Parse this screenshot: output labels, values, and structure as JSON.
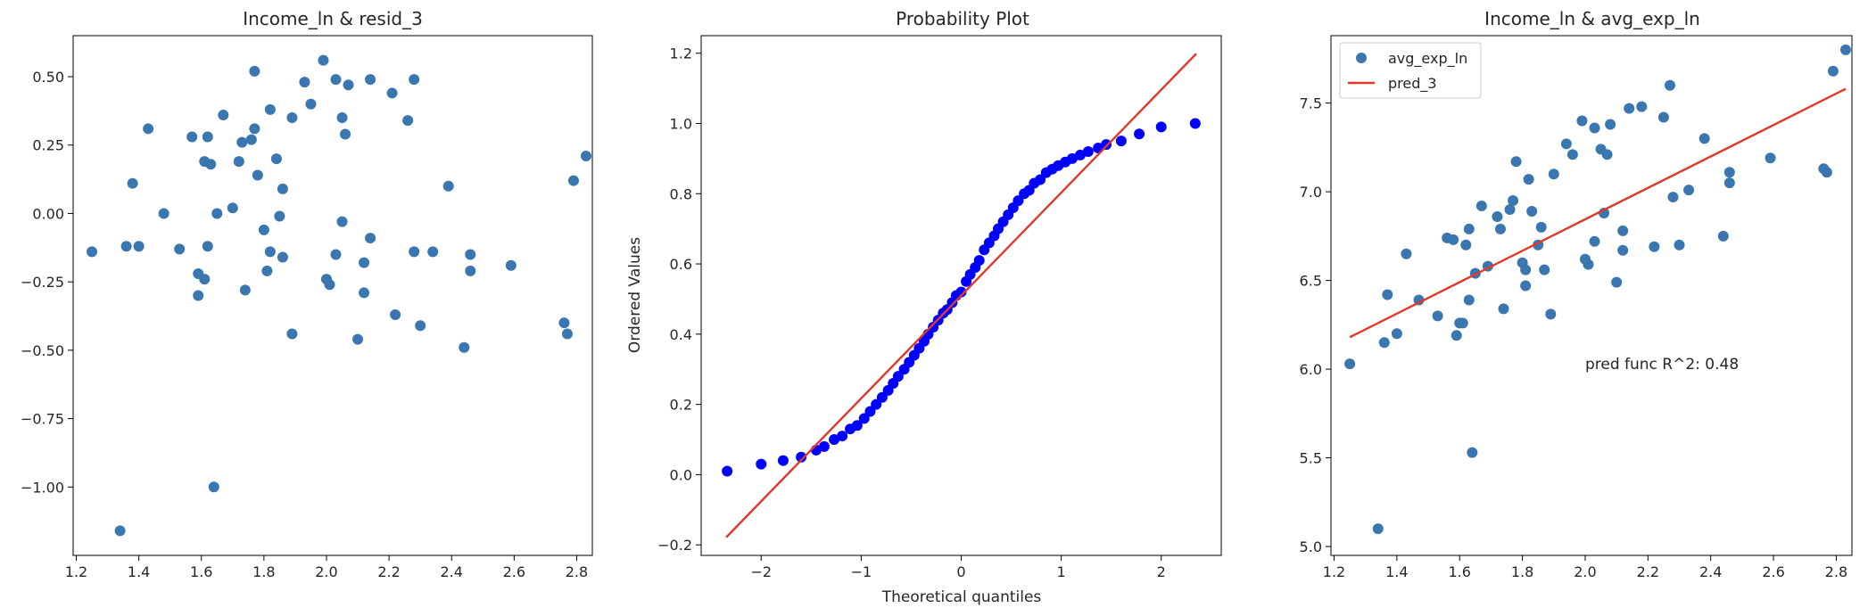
{
  "chart_data": [
    {
      "type": "scatter",
      "title": "Income_ln & resid_3",
      "xlabel": "",
      "ylabel": "",
      "xlim": [
        1.19,
        2.85
      ],
      "ylim": [
        -1.25,
        0.65
      ],
      "xticks": [
        1.2,
        1.4,
        1.6,
        1.8,
        2.0,
        2.2,
        2.4,
        2.6,
        2.8
      ],
      "xtick_labels": [
        "1.2",
        "1.4",
        "1.6",
        "1.8",
        "2.0",
        "2.2",
        "2.4",
        "2.6",
        "2.8"
      ],
      "yticks": [
        -1.0,
        -0.75,
        -0.5,
        -0.25,
        0.0,
        0.25,
        0.5
      ],
      "ytick_labels": [
        "−1.00",
        "−0.75",
        "−0.50",
        "−0.25",
        "0.00",
        "0.25",
        "0.50"
      ],
      "grid": false,
      "marker_color": "#3a76af",
      "points": [
        [
          1.25,
          -0.14
        ],
        [
          1.34,
          -1.16
        ],
        [
          1.36,
          -0.12
        ],
        [
          1.38,
          0.11
        ],
        [
          1.4,
          -0.12
        ],
        [
          1.43,
          0.31
        ],
        [
          1.48,
          0.0
        ],
        [
          1.53,
          -0.13
        ],
        [
          1.57,
          0.28
        ],
        [
          1.59,
          -0.22
        ],
        [
          1.59,
          -0.3
        ],
        [
          1.61,
          0.19
        ],
        [
          1.61,
          -0.24
        ],
        [
          1.62,
          -0.12
        ],
        [
          1.62,
          0.28
        ],
        [
          1.63,
          0.18
        ],
        [
          1.64,
          -1.0
        ],
        [
          1.65,
          0.0
        ],
        [
          1.67,
          0.36
        ],
        [
          1.7,
          0.02
        ],
        [
          1.72,
          0.19
        ],
        [
          1.73,
          0.26
        ],
        [
          1.74,
          -0.28
        ],
        [
          1.76,
          0.27
        ],
        [
          1.77,
          0.31
        ],
        [
          1.78,
          0.14
        ],
        [
          1.77,
          0.52
        ],
        [
          1.8,
          -0.06
        ],
        [
          1.81,
          -0.21
        ],
        [
          1.82,
          0.38
        ],
        [
          1.82,
          -0.14
        ],
        [
          1.84,
          0.2
        ],
        [
          1.85,
          -0.01
        ],
        [
          1.86,
          0.09
        ],
        [
          1.86,
          -0.16
        ],
        [
          1.89,
          -0.44
        ],
        [
          1.89,
          0.35
        ],
        [
          1.93,
          0.48
        ],
        [
          1.95,
          0.4
        ],
        [
          1.99,
          0.56
        ],
        [
          2.0,
          -0.24
        ],
        [
          2.01,
          -0.26
        ],
        [
          2.03,
          0.49
        ],
        [
          2.03,
          -0.15
        ],
        [
          2.05,
          0.35
        ],
        [
          2.05,
          -0.03
        ],
        [
          2.06,
          0.29
        ],
        [
          2.07,
          0.47
        ],
        [
          2.1,
          -0.46
        ],
        [
          2.12,
          -0.18
        ],
        [
          2.12,
          -0.29
        ],
        [
          2.14,
          -0.09
        ],
        [
          2.14,
          0.49
        ],
        [
          2.21,
          0.44
        ],
        [
          2.22,
          -0.37
        ],
        [
          2.26,
          0.34
        ],
        [
          2.28,
          0.49
        ],
        [
          2.28,
          -0.14
        ],
        [
          2.3,
          -0.41
        ],
        [
          2.34,
          -0.14
        ],
        [
          2.39,
          0.1
        ],
        [
          2.44,
          -0.49
        ],
        [
          2.46,
          -0.21
        ],
        [
          2.46,
          -0.15
        ],
        [
          2.59,
          -0.19
        ],
        [
          2.76,
          -0.4
        ],
        [
          2.77,
          -0.44
        ],
        [
          2.79,
          0.12
        ],
        [
          2.83,
          0.21
        ]
      ]
    },
    {
      "type": "scatter",
      "title": "Probability Plot",
      "xlabel": "Theoretical quantiles",
      "ylabel": "Ordered Values",
      "xlim": [
        -2.6,
        2.6
      ],
      "ylim": [
        -0.23,
        1.25
      ],
      "xticks": [
        -2,
        -1,
        0,
        1,
        2
      ],
      "xtick_labels": [
        "−2",
        "−1",
        "0",
        "1",
        "2"
      ],
      "yticks": [
        -0.2,
        0.0,
        0.2,
        0.4,
        0.6,
        0.8,
        1.0,
        1.2
      ],
      "ytick_labels": [
        "−0.2",
        "0.0",
        "0.2",
        "0.4",
        "0.6",
        "0.8",
        "1.0",
        "1.2"
      ],
      "grid": false,
      "marker_color": "#0000ff",
      "line_color": "#e0392b",
      "fit_line": {
        "slope": 0.293,
        "intercept": 0.51,
        "x_range": [
          -2.35,
          2.35
        ]
      },
      "points": [
        [
          -2.34,
          0.01
        ],
        [
          -2.0,
          0.03
        ],
        [
          -1.78,
          0.04
        ],
        [
          -1.6,
          0.05
        ],
        [
          -1.45,
          0.07
        ],
        [
          -1.37,
          0.08
        ],
        [
          -1.27,
          0.1
        ],
        [
          -1.19,
          0.11
        ],
        [
          -1.11,
          0.13
        ],
        [
          -1.04,
          0.14
        ],
        [
          -0.97,
          0.16
        ],
        [
          -0.91,
          0.18
        ],
        [
          -0.85,
          0.2
        ],
        [
          -0.79,
          0.22
        ],
        [
          -0.73,
          0.24
        ],
        [
          -0.68,
          0.26
        ],
        [
          -0.63,
          0.28
        ],
        [
          -0.57,
          0.3
        ],
        [
          -0.52,
          0.32
        ],
        [
          -0.47,
          0.34
        ],
        [
          -0.42,
          0.36
        ],
        [
          -0.37,
          0.38
        ],
        [
          -0.33,
          0.4
        ],
        [
          -0.28,
          0.42
        ],
        [
          -0.23,
          0.44
        ],
        [
          -0.18,
          0.46
        ],
        [
          -0.14,
          0.47
        ],
        [
          -0.09,
          0.49
        ],
        [
          -0.05,
          0.51
        ],
        [
          0.0,
          0.52
        ],
        [
          0.05,
          0.55
        ],
        [
          0.09,
          0.57
        ],
        [
          0.14,
          0.59
        ],
        [
          0.18,
          0.61
        ],
        [
          0.23,
          0.64
        ],
        [
          0.28,
          0.66
        ],
        [
          0.33,
          0.68
        ],
        [
          0.37,
          0.7
        ],
        [
          0.42,
          0.72
        ],
        [
          0.47,
          0.74
        ],
        [
          0.52,
          0.76
        ],
        [
          0.57,
          0.78
        ],
        [
          0.63,
          0.8
        ],
        [
          0.68,
          0.81
        ],
        [
          0.73,
          0.83
        ],
        [
          0.79,
          0.84
        ],
        [
          0.85,
          0.86
        ],
        [
          0.91,
          0.87
        ],
        [
          0.97,
          0.88
        ],
        [
          1.04,
          0.89
        ],
        [
          1.11,
          0.9
        ],
        [
          1.19,
          0.91
        ],
        [
          1.27,
          0.92
        ],
        [
          1.37,
          0.93
        ],
        [
          1.45,
          0.94
        ],
        [
          1.6,
          0.95
        ],
        [
          1.78,
          0.97
        ],
        [
          2.0,
          0.99
        ],
        [
          2.34,
          1.0
        ]
      ]
    },
    {
      "type": "scatter",
      "title": "Income_ln & avg_exp_ln",
      "xlabel": "",
      "ylabel": "",
      "xlim": [
        1.19,
        2.85
      ],
      "ylim": [
        4.95,
        7.88
      ],
      "xticks": [
        1.2,
        1.4,
        1.6,
        1.8,
        2.0,
        2.2,
        2.4,
        2.6,
        2.8
      ],
      "xtick_labels": [
        "1.2",
        "1.4",
        "1.6",
        "1.8",
        "2.0",
        "2.2",
        "2.4",
        "2.6",
        "2.8"
      ],
      "yticks": [
        5.0,
        5.5,
        6.0,
        6.5,
        7.0,
        7.5
      ],
      "ytick_labels": [
        "5.0",
        "5.5",
        "6.0",
        "6.5",
        "7.0",
        "7.5"
      ],
      "grid": false,
      "marker_color": "#3a76af",
      "line_color": "#e0392b",
      "legend": {
        "placement": "top-left",
        "entries": [
          "avg_exp_ln",
          "pred_3"
        ]
      },
      "annotation": {
        "text": "pred func R^2: 0.48",
        "x": 2.0,
        "y": 6.03
      },
      "fit_line": {
        "label": "pred_3",
        "x": [
          1.25,
          2.83
        ],
        "y": [
          6.18,
          7.58
        ]
      },
      "points": [
        [
          1.25,
          6.03
        ],
        [
          1.34,
          5.1
        ],
        [
          1.36,
          6.15
        ],
        [
          1.37,
          6.42
        ],
        [
          1.4,
          6.2
        ],
        [
          1.43,
          6.65
        ],
        [
          1.47,
          6.39
        ],
        [
          1.53,
          6.3
        ],
        [
          1.56,
          6.74
        ],
        [
          1.58,
          6.73
        ],
        [
          1.59,
          6.19
        ],
        [
          1.6,
          6.26
        ],
        [
          1.61,
          6.26
        ],
        [
          1.62,
          6.7
        ],
        [
          1.63,
          6.79
        ],
        [
          1.63,
          6.39
        ],
        [
          1.64,
          5.53
        ],
        [
          1.65,
          6.54
        ],
        [
          1.67,
          6.92
        ],
        [
          1.69,
          6.58
        ],
        [
          1.72,
          6.86
        ],
        [
          1.73,
          6.79
        ],
        [
          1.74,
          6.34
        ],
        [
          1.76,
          6.9
        ],
        [
          1.77,
          6.95
        ],
        [
          1.78,
          7.17
        ],
        [
          1.8,
          6.6
        ],
        [
          1.81,
          6.47
        ],
        [
          1.81,
          6.56
        ],
        [
          1.82,
          7.07
        ],
        [
          1.83,
          6.89
        ],
        [
          1.85,
          6.7
        ],
        [
          1.86,
          6.8
        ],
        [
          1.87,
          6.56
        ],
        [
          1.89,
          6.31
        ],
        [
          1.9,
          7.1
        ],
        [
          1.94,
          7.27
        ],
        [
          1.96,
          7.21
        ],
        [
          1.99,
          7.4
        ],
        [
          2.0,
          6.62
        ],
        [
          2.01,
          6.59
        ],
        [
          2.03,
          7.36
        ],
        [
          2.03,
          6.72
        ],
        [
          2.05,
          7.24
        ],
        [
          2.06,
          6.88
        ],
        [
          2.07,
          7.21
        ],
        [
          2.08,
          7.38
        ],
        [
          2.1,
          6.49
        ],
        [
          2.12,
          6.67
        ],
        [
          2.12,
          6.78
        ],
        [
          2.14,
          7.47
        ],
        [
          2.18,
          7.48
        ],
        [
          2.22,
          6.69
        ],
        [
          2.25,
          7.42
        ],
        [
          2.27,
          7.6
        ],
        [
          2.28,
          6.97
        ],
        [
          2.3,
          6.7
        ],
        [
          2.33,
          7.01
        ],
        [
          2.38,
          7.3
        ],
        [
          2.44,
          6.75
        ],
        [
          2.46,
          7.05
        ],
        [
          2.46,
          7.11
        ],
        [
          2.59,
          7.19
        ],
        [
          2.76,
          7.13
        ],
        [
          2.77,
          7.11
        ],
        [
          2.79,
          7.68
        ],
        [
          2.83,
          7.8
        ]
      ]
    }
  ]
}
